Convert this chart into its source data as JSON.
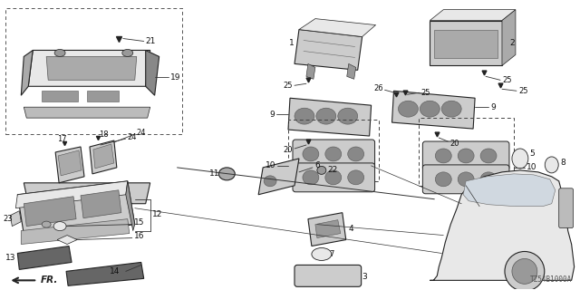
{
  "part_number": "TZ54B1000A",
  "bg_color": "#ffffff",
  "dark": "#222222",
  "mid": "#888888",
  "light": "#cccccc",
  "lighter": "#e8e8e8",
  "lw_part": 0.8,
  "lw_line": 0.6,
  "fs_label": 6.5,
  "fs_small": 5.5
}
